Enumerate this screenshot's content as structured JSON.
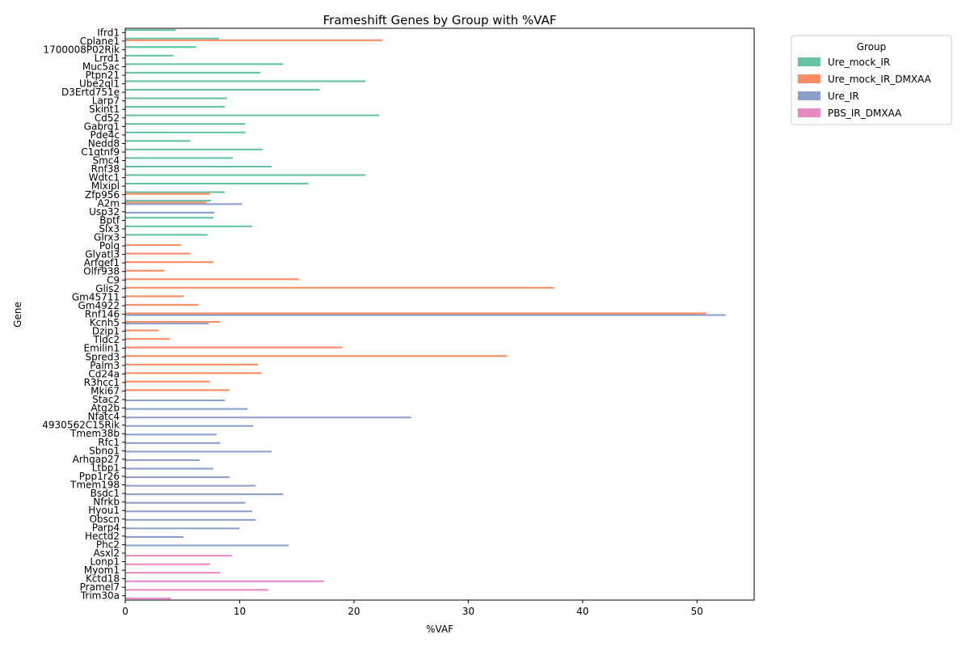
{
  "chart_data": {
    "type": "bar",
    "orientation": "horizontal",
    "title": "Frameshift Genes by Group with %VAF",
    "xlabel": "%VAF",
    "ylabel": "Gene",
    "xlim": [
      0,
      55
    ],
    "xticks": [
      0,
      10,
      20,
      30,
      40,
      50
    ],
    "grid": false,
    "legend_title": "Group",
    "legend_position": "upper-right-outside",
    "groups": [
      "Ure_mock_IR",
      "Ure_mock_IR_DMXAA",
      "Ure_IR",
      "PBS_IR_DMXAA"
    ],
    "colors": {
      "Ure_mock_IR": "#66c2a5",
      "Ure_mock_IR_DMXAA": "#fc8d62",
      "Ure_IR": "#8da0cb",
      "PBS_IR_DMXAA": "#e78ac3"
    },
    "categories": [
      "Ifrd1",
      "Cplane1",
      "1700008P02Rik",
      "Lrrd1",
      "Muc5ac",
      "Ptpn21",
      "Ube2ql1",
      "D3Ertd751e",
      "Larp7",
      "Skint1",
      "Cd52",
      "Gabrg1",
      "Pde4c",
      "Nedd8",
      "C1qtnf9",
      "Smc4",
      "Rnf38",
      "Wdtc1",
      "Mlxipl",
      "Zfp956",
      "A2m",
      "Usp32",
      "Bptf",
      "Slx3",
      "Glrx3",
      "Polq",
      "Glyatl3",
      "Arfgef1",
      "Olfr938",
      "C9",
      "Glis2",
      "Gm45711",
      "Gm4922",
      "Rnf146",
      "Kcnh5",
      "Dzip1",
      "Tldc2",
      "Emilin1",
      "Spred3",
      "Palm3",
      "Cd24a",
      "R3hcc1",
      "Mki67",
      "Stac2",
      "Atg2b",
      "Nfatc4",
      "4930562C15Rik",
      "Tmem38b",
      "Rfc1",
      "Sbno1",
      "Arhgap27",
      "Ltbp1",
      "Ppp1r26",
      "Tmem198",
      "Bsdc1",
      "Nfrkb",
      "Hyou1",
      "Obscn",
      "Parp4",
      "Hectd2",
      "Phc2",
      "Asxl2",
      "Lonp1",
      "Myom1",
      "Kctd18",
      "Pramel7",
      "Trim30a"
    ],
    "series": [
      {
        "name": "Ure_mock_IR",
        "values": [
          4.4,
          8.2,
          6.2,
          4.2,
          13.8,
          11.8,
          21.0,
          17.0,
          8.9,
          8.7,
          22.2,
          10.5,
          10.5,
          5.7,
          12.0,
          9.4,
          12.8,
          21.0,
          16.0,
          8.7,
          7.5,
          null,
          7.7,
          11.1,
          7.2,
          null,
          null,
          null,
          null,
          null,
          null,
          null,
          null,
          null,
          null,
          null,
          null,
          null,
          null,
          null,
          null,
          null,
          null,
          null,
          null,
          null,
          null,
          null,
          null,
          null,
          null,
          null,
          null,
          null,
          null,
          null,
          null,
          null,
          null,
          null,
          null,
          null,
          null,
          null,
          null,
          null,
          null
        ]
      },
      {
        "name": "Ure_mock_IR_DMXAA",
        "values": [
          null,
          22.5,
          null,
          null,
          null,
          null,
          null,
          null,
          null,
          null,
          null,
          null,
          null,
          null,
          null,
          null,
          null,
          null,
          null,
          7.4,
          7.1,
          null,
          null,
          null,
          null,
          4.9,
          5.7,
          7.7,
          3.4,
          15.2,
          37.5,
          5.1,
          6.4,
          50.8,
          8.3,
          2.9,
          3.9,
          19.0,
          33.4,
          11.6,
          11.9,
          7.4,
          9.1,
          null,
          null,
          null,
          null,
          null,
          null,
          null,
          null,
          null,
          null,
          null,
          null,
          null,
          null,
          null,
          null,
          null,
          null,
          null,
          null,
          null,
          null,
          null,
          null
        ]
      },
      {
        "name": "Ure_IR",
        "values": [
          null,
          null,
          null,
          null,
          null,
          null,
          null,
          null,
          null,
          null,
          null,
          null,
          null,
          null,
          null,
          null,
          null,
          null,
          null,
          null,
          10.2,
          7.8,
          null,
          null,
          null,
          null,
          null,
          null,
          null,
          null,
          null,
          null,
          null,
          52.5,
          7.3,
          null,
          null,
          null,
          null,
          null,
          null,
          null,
          null,
          8.7,
          10.7,
          25.0,
          11.2,
          8.0,
          8.3,
          12.8,
          6.5,
          7.7,
          9.1,
          11.4,
          13.8,
          10.5,
          11.1,
          11.4,
          10.0,
          5.1,
          14.3,
          null,
          null,
          null,
          null,
          null,
          null
        ]
      },
      {
        "name": "PBS_IR_DMXAA",
        "values": [
          null,
          null,
          null,
          null,
          null,
          null,
          null,
          null,
          null,
          null,
          null,
          null,
          null,
          null,
          null,
          null,
          null,
          null,
          null,
          null,
          null,
          null,
          null,
          null,
          null,
          null,
          null,
          null,
          null,
          null,
          null,
          null,
          null,
          null,
          null,
          null,
          null,
          null,
          null,
          null,
          null,
          null,
          null,
          null,
          null,
          null,
          null,
          null,
          null,
          null,
          null,
          null,
          null,
          null,
          null,
          null,
          null,
          null,
          null,
          null,
          null,
          9.3,
          7.4,
          8.3,
          17.4,
          12.5,
          4.0
        ]
      }
    ]
  }
}
